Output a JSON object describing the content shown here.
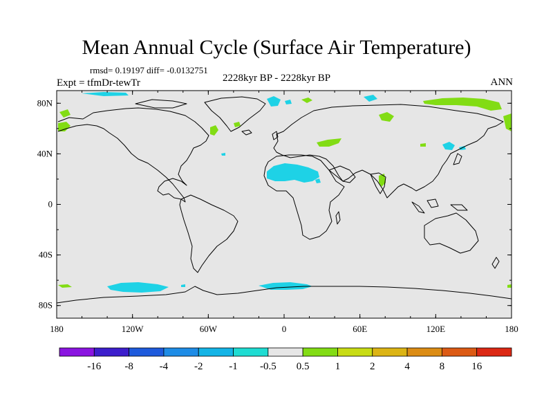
{
  "title": "Mean Annual Cycle (Surface Air Temperature)",
  "stats": "rmsd= 0.19197 diff= -0.0132751",
  "subtitle": "2228kyr BP - 2228kyr BP",
  "experiment": "Expt = tfmDr-tewTr",
  "season": "ANN",
  "map": {
    "projection": "cylindrical equidistant",
    "background_color": "#e6e6e6",
    "lat_ticks": [
      "80N",
      "40N",
      "0",
      "40S",
      "80S"
    ],
    "lon_ticks": [
      "180",
      "120W",
      "60W",
      "0",
      "60E",
      "120E",
      "180"
    ]
  },
  "colorbar": {
    "colors": [
      "#8a14e0",
      "#3c1ecc",
      "#1e5adc",
      "#1e8ce6",
      "#14b4e6",
      "#1edcd2",
      "#e6e6e6",
      "#82dc14",
      "#c8dc14",
      "#dcb414",
      "#dc8c14",
      "#dc5a14",
      "#dc2814"
    ],
    "labels": [
      "-16",
      "-8",
      "-4",
      "-2",
      "-1",
      "-0.5",
      "0.5",
      "1",
      "2",
      "4",
      "8",
      "16"
    ]
  }
}
